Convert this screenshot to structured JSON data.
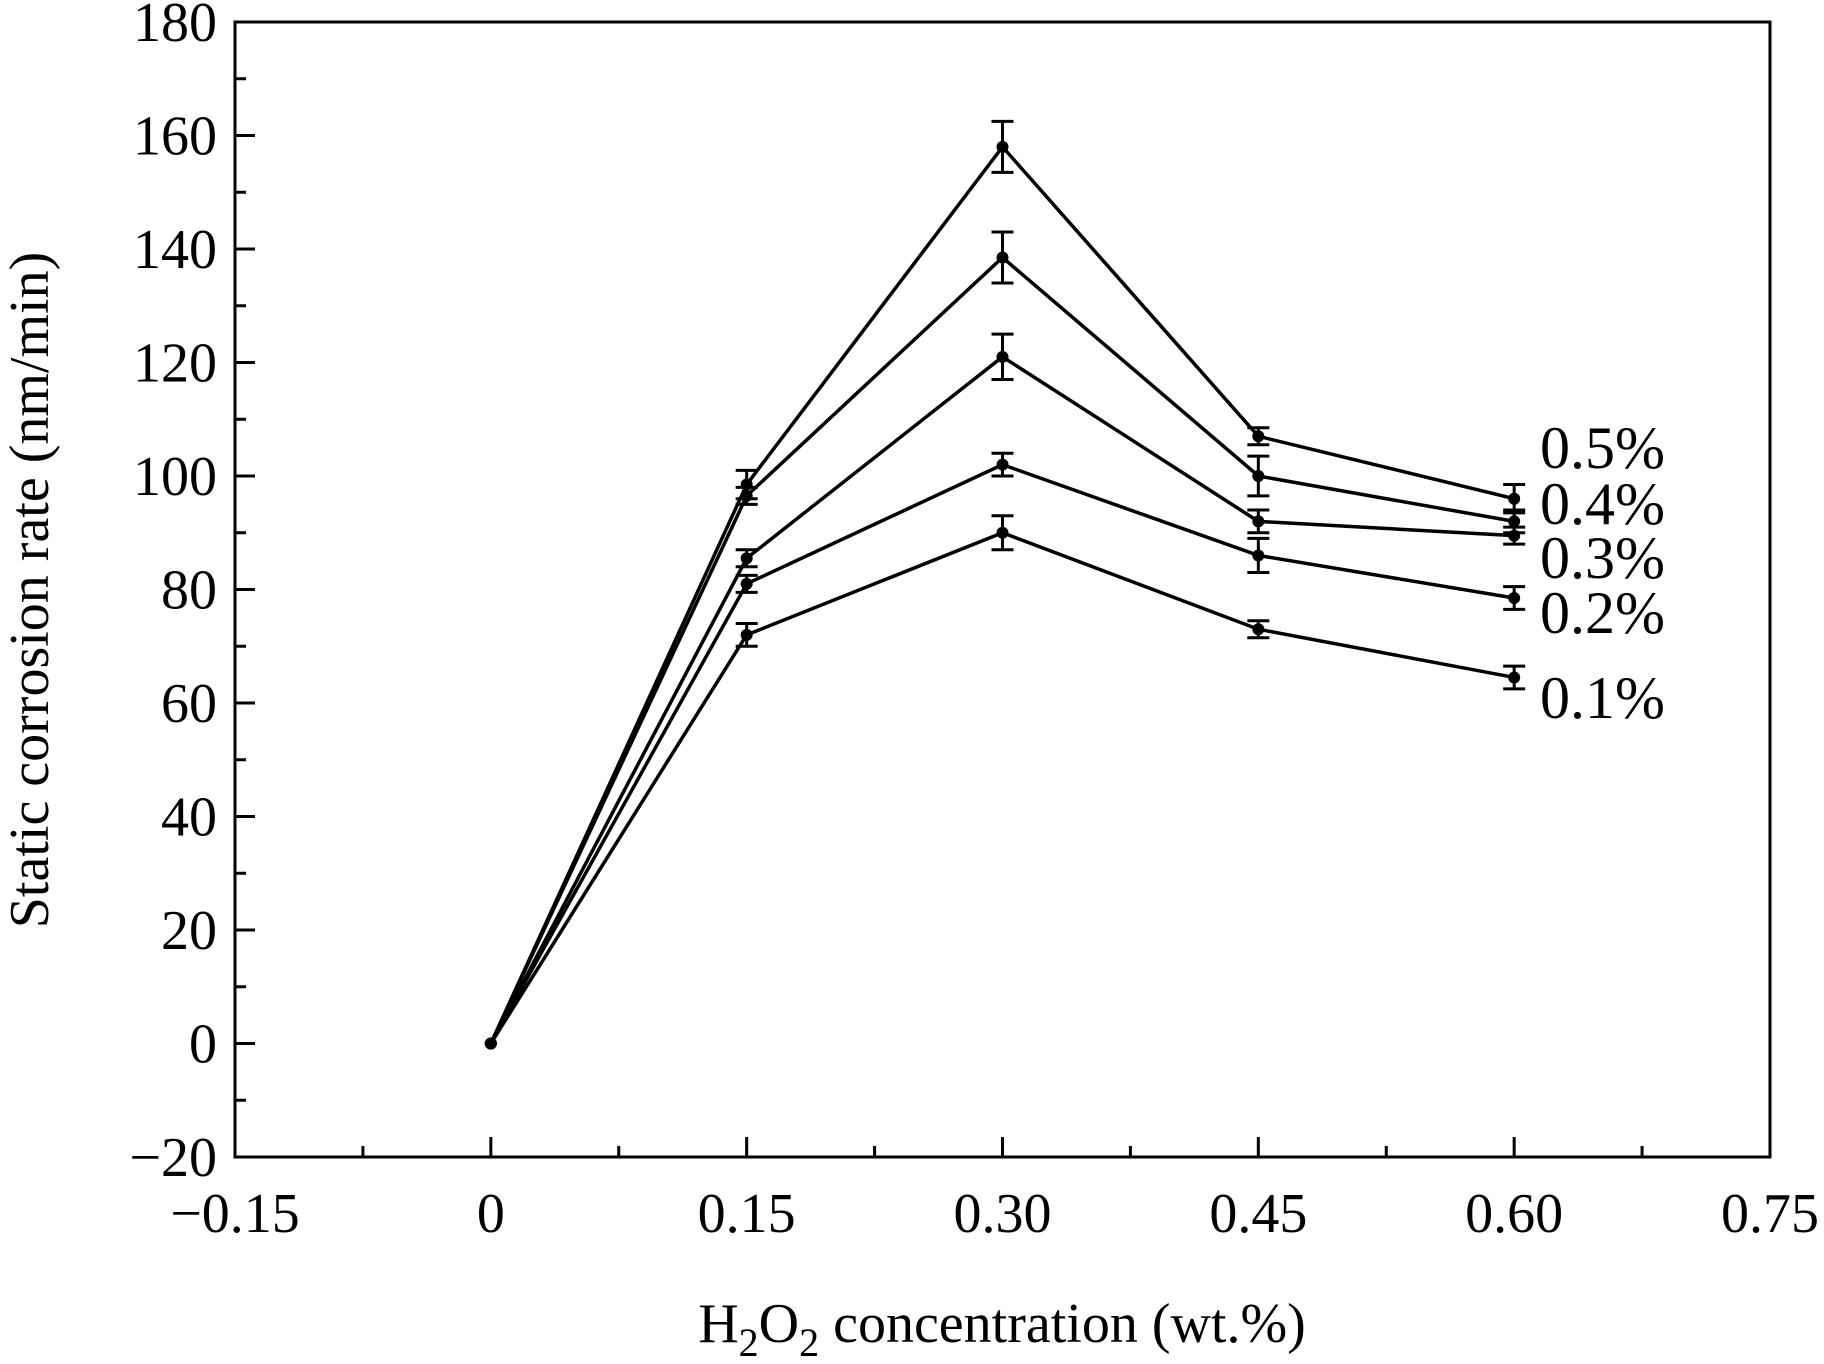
{
  "chart_data": {
    "type": "line",
    "title": "",
    "xlabel": "H2O2 concentration (wt.%)",
    "xlabel_parts": {
      "pre": "H",
      "sub1": "2",
      "mid": "O",
      "sub2": "2",
      "post": " concentration (wt.%)"
    },
    "ylabel": "Static corrosion rate (nm/min)",
    "xlim": [
      -0.15,
      0.75
    ],
    "ylim": [
      -20,
      180
    ],
    "x_ticks": [
      -0.15,
      0,
      0.15,
      0.3,
      0.45,
      0.6,
      0.75
    ],
    "x_tick_labels": [
      "−0.15",
      "0",
      "0.15",
      "0.30",
      "0.45",
      "0.60",
      "0.75"
    ],
    "y_ticks": [
      -20,
      0,
      20,
      40,
      60,
      80,
      100,
      120,
      140,
      160,
      180
    ],
    "y_tick_labels": [
      "−20",
      "0",
      "20",
      "40",
      "60",
      "80",
      "100",
      "120",
      "140",
      "160",
      "180"
    ],
    "grid": false,
    "legend": "inline labels at right end of each line",
    "line_color": "#000000",
    "x": [
      0,
      0.15,
      0.3,
      0.45,
      0.6
    ],
    "series": [
      {
        "name": "0.5%",
        "values": [
          0,
          98.5,
          158,
          107,
          96
        ],
        "errors": [
          0,
          2.5,
          4.5,
          1.5,
          2.5
        ]
      },
      {
        "name": "0.4%",
        "values": [
          0,
          96.5,
          138.5,
          100,
          92
        ],
        "errors": [
          0,
          1.5,
          4.5,
          3.5,
          2
        ]
      },
      {
        "name": "0.3%",
        "values": [
          0,
          85.5,
          121,
          92,
          89.5
        ],
        "errors": [
          0,
          1.5,
          4,
          2,
          1.5
        ]
      },
      {
        "name": "0.2%",
        "values": [
          0,
          81,
          102,
          86,
          78.5
        ],
        "errors": [
          0,
          1.5,
          2,
          3,
          2
        ]
      },
      {
        "name": "0.1%",
        "values": [
          0,
          72,
          90,
          73,
          64.5
        ],
        "errors": [
          0,
          2,
          3,
          1.5,
          2
        ]
      }
    ]
  }
}
